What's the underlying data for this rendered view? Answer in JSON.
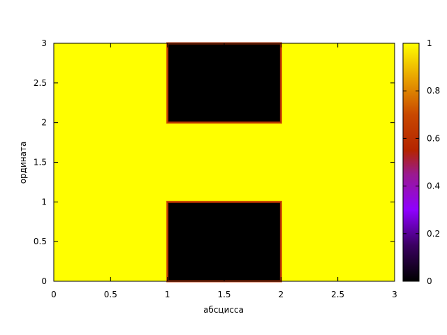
{
  "chart_data": {
    "type": "heatmap",
    "title": "",
    "xlabel": "абсцисса",
    "ylabel": "ордината",
    "xlim": [
      0,
      3
    ],
    "ylim": [
      0,
      3
    ],
    "x_ticks": [
      "0",
      "0.5",
      "1",
      "1.5",
      "2",
      "2.5",
      "3"
    ],
    "x_tick_values": [
      0,
      0.5,
      1,
      1.5,
      2,
      2.5,
      3
    ],
    "y_ticks": [
      "0",
      "0.5",
      "1",
      "1.5",
      "2",
      "2.5",
      "3"
    ],
    "y_tick_values": [
      0,
      0.5,
      1,
      1.5,
      2,
      2.5,
      3
    ],
    "grid": false,
    "colormap": "gnuplot-hot",
    "colorbar": {
      "range": [
        0,
        1
      ],
      "ticks": [
        "0",
        "0.2",
        "0.4",
        "0.6",
        "0.8",
        "1"
      ],
      "tick_values": [
        0,
        0.2,
        0.4,
        0.6,
        0.8,
        1
      ],
      "colors": [
        "#000000",
        "#6a00b4",
        "#8f00ff",
        "#b42400",
        "#d86a00",
        "#ffff00"
      ]
    },
    "regions": [
      {
        "x": [
          0,
          3
        ],
        "y": [
          0,
          3
        ],
        "value": 1
      },
      {
        "x": [
          1,
          2
        ],
        "y": [
          0,
          1
        ],
        "value": 0
      },
      {
        "x": [
          1,
          2
        ],
        "y": [
          2,
          3
        ],
        "value": 0
      }
    ],
    "edge_color": "#c83200"
  }
}
